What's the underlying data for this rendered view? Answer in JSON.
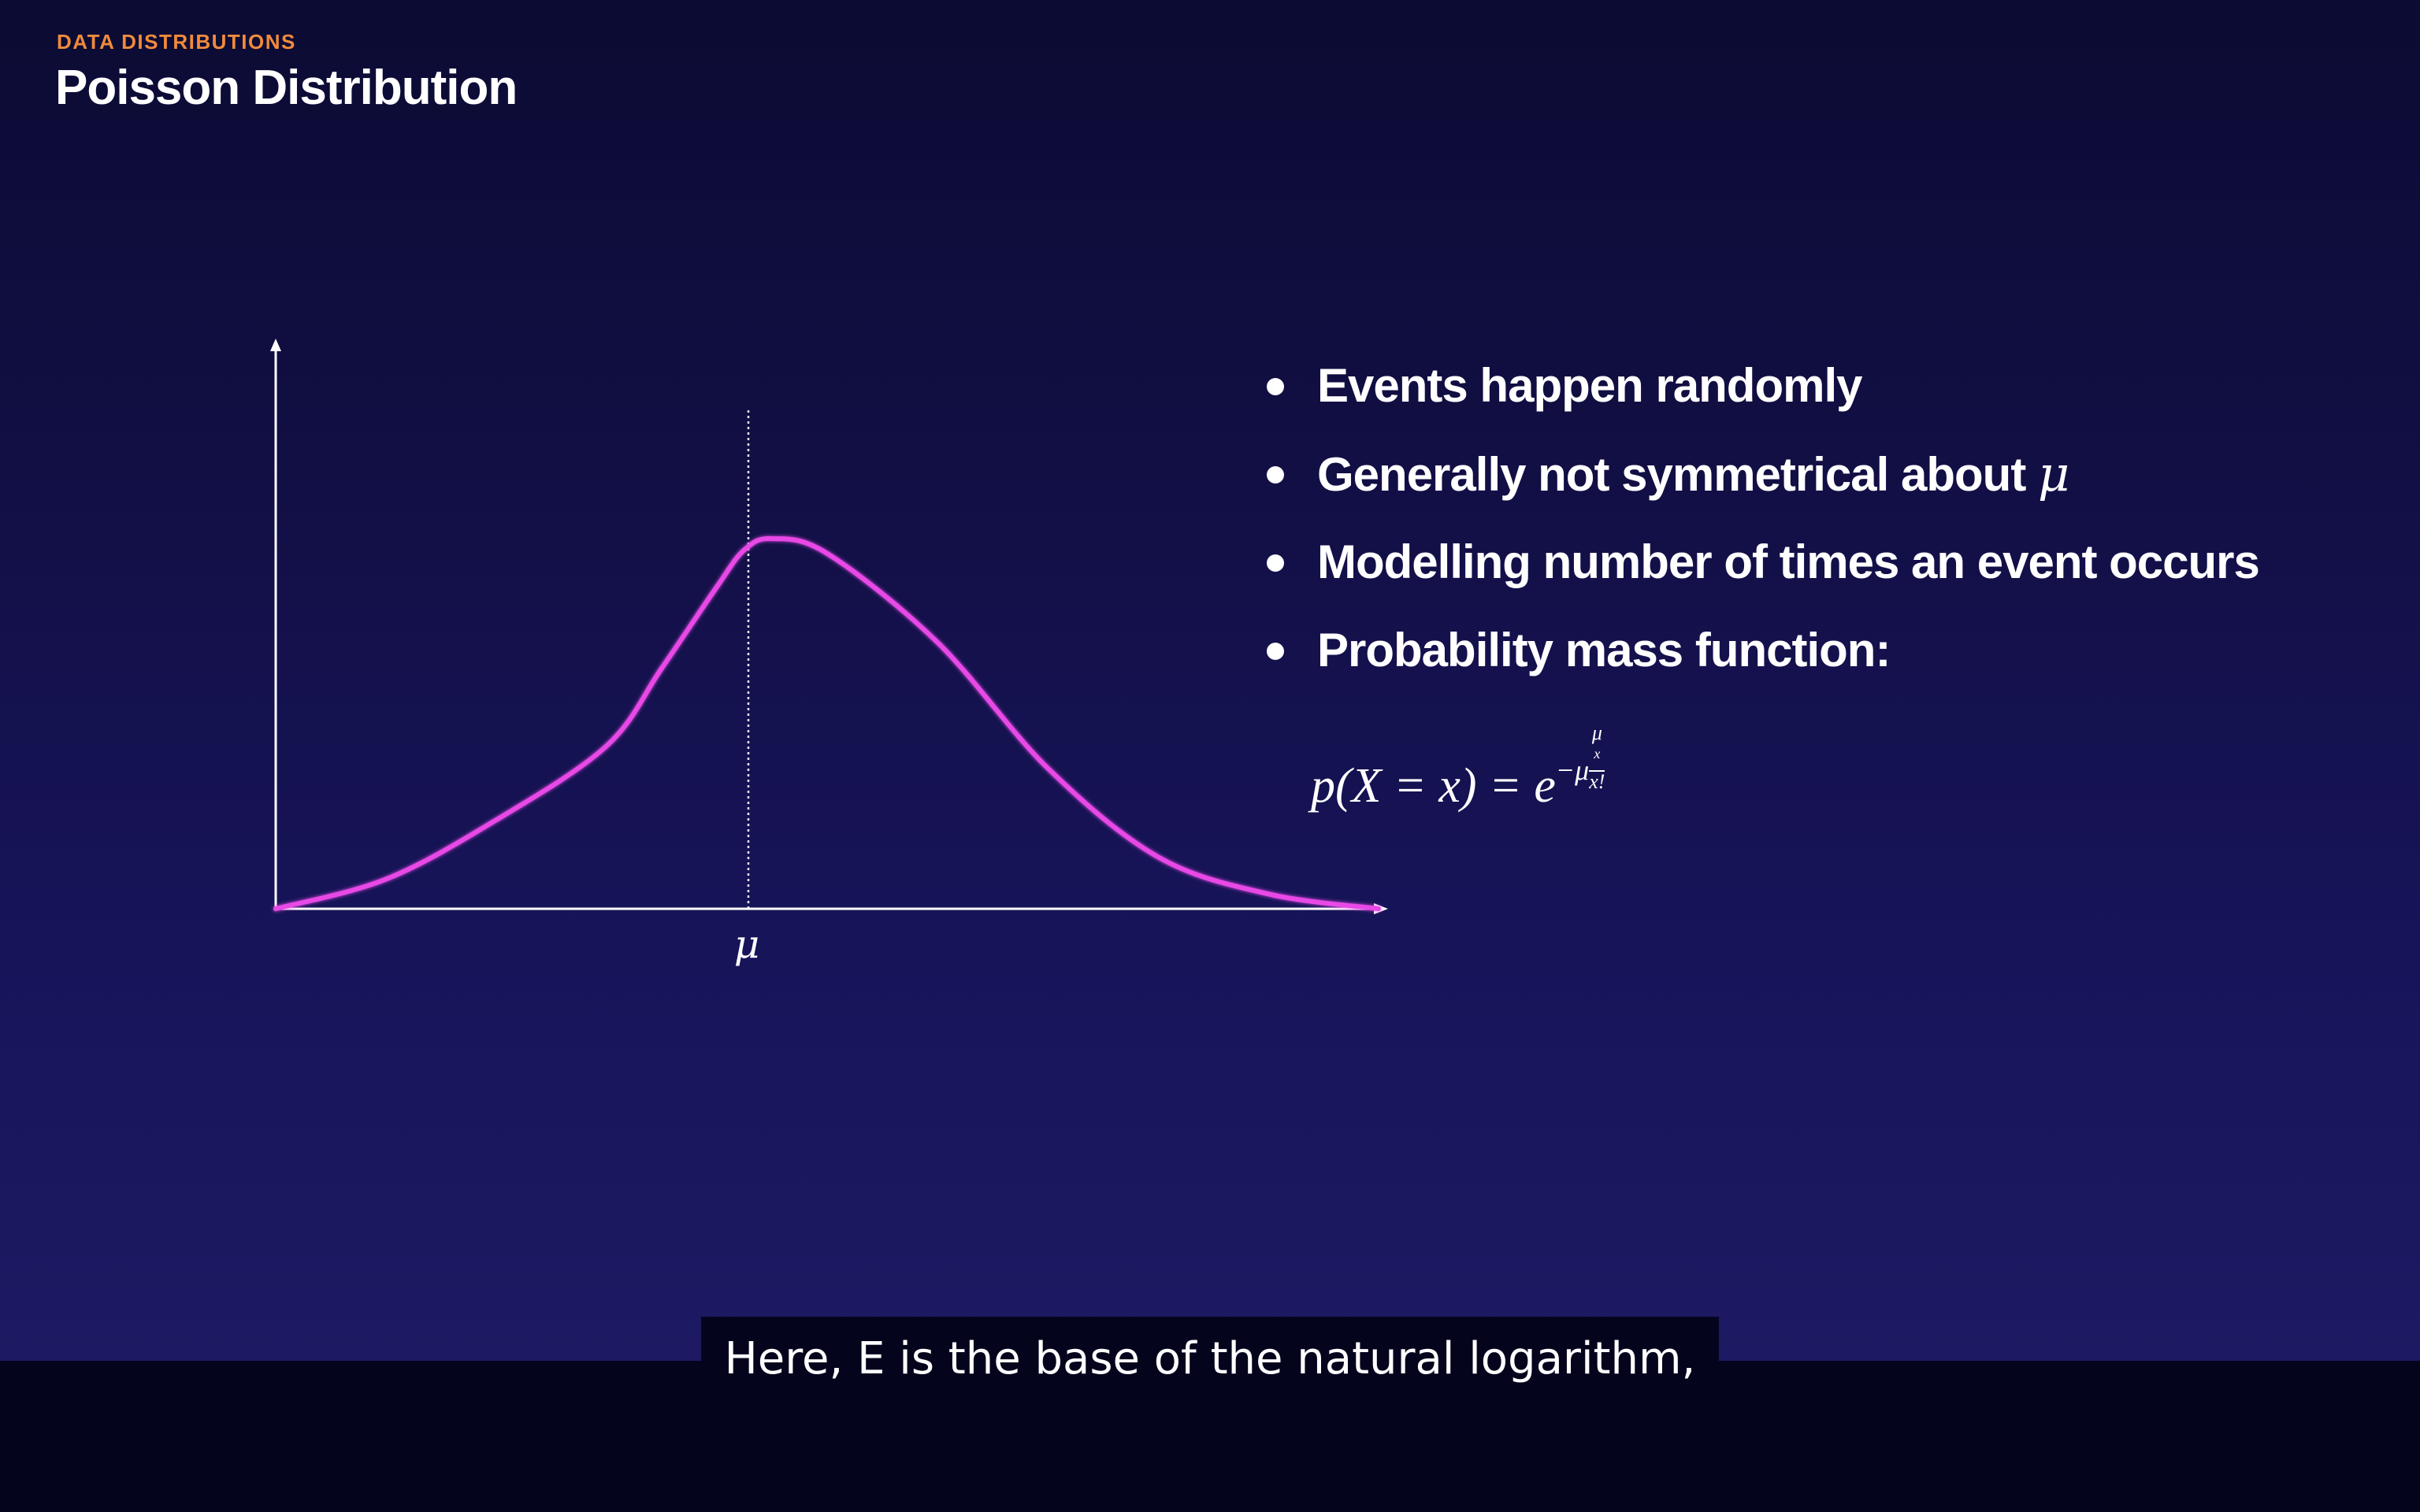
{
  "slide": {
    "eyebrow": "DATA DISTRIBUTIONS",
    "title": "Poisson Distribution"
  },
  "bullets": [
    {
      "text": "Events happen randomly"
    },
    {
      "text": "Generally not symmetrical about ",
      "symbol": "μ"
    },
    {
      "text": "Modelling number of times an event occurs"
    },
    {
      "text": "Probability mass function:"
    }
  ],
  "formula": {
    "lhs": "p(X = x) = e",
    "exponent": "−μ",
    "numerator": "μ",
    "numerator_sup": "x",
    "denominator": "x!"
  },
  "chart_data": {
    "type": "line",
    "x_tick_labels": [
      "μ"
    ],
    "mean_marker": "dotted-vertical-line",
    "curve_color": "#e84ae6",
    "axis_color": "#ffffff",
    "series": [
      {
        "x": [
          0,
          0.1,
          0.2,
          0.3,
          0.35,
          0.4,
          0.425,
          0.45,
          0.5,
          0.6,
          0.7,
          0.8,
          0.9,
          1.0
        ],
        "values": [
          0.0,
          0.08,
          0.24,
          0.44,
          0.65,
          0.87,
          0.97,
          1.0,
          0.96,
          0.72,
          0.38,
          0.14,
          0.04,
          0.0
        ]
      }
    ]
  },
  "caption": {
    "text": "Here, E is the base of the natural logarithm,"
  },
  "colors": {
    "accent": "#f08a3c",
    "curve": "#e84ae6",
    "text": "#ffffff",
    "caption_bg": "#05041d"
  }
}
